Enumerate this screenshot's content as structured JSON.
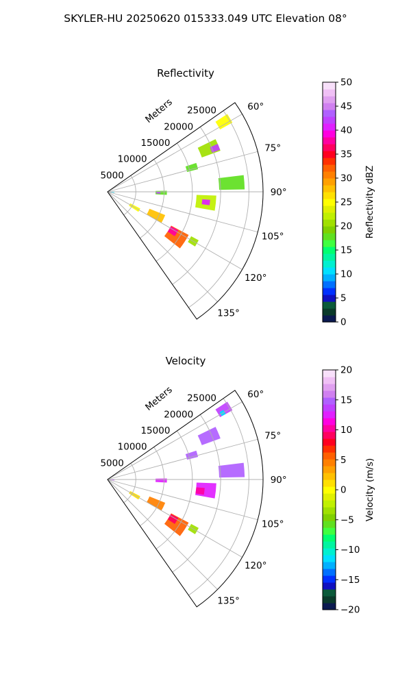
{
  "figure_title": "SKYLER-HU  20250620  015333.049 UTC Elevation 08°",
  "chart_data": [
    {
      "type": "heatmap",
      "projection": "polar-sector",
      "title": "Reflectivity",
      "range_label": "Meters",
      "range_ticks": [
        5000,
        10000,
        15000,
        20000,
        25000
      ],
      "range_tick_labels": [
        "5000",
        "10000",
        "15000",
        "20000",
        "25000"
      ],
      "azimuth_ticks": [
        60,
        75,
        90,
        105,
        120,
        135
      ],
      "azimuth_tick_labels": [
        "60°",
        "75°",
        "90°",
        "105°",
        "120°",
        "135°"
      ],
      "azimuth_range": [
        55,
        145
      ],
      "range_max": 27500,
      "grid": true,
      "colorbar": {
        "label": "Reflectivity dBZ",
        "min": 0,
        "max": 50,
        "ticks": [
          0,
          5,
          10,
          15,
          20,
          25,
          30,
          35,
          40,
          45,
          50
        ],
        "tick_labels": [
          "0",
          "5",
          "10",
          "15",
          "20",
          "25",
          "30",
          "35",
          "40",
          "45",
          "50"
        ],
        "colors": [
          "#0b1a50",
          "#0a3a2a",
          "#0b5a3a",
          "#1010c0",
          "#0030ff",
          "#0070ff",
          "#00b0ff",
          "#00e0ff",
          "#00f0d0",
          "#00f5a0",
          "#00ff70",
          "#40ff40",
          "#60e020",
          "#80d000",
          "#a0e000",
          "#c0f000",
          "#e0f000",
          "#ffff00",
          "#ffe000",
          "#ffc000",
          "#ffa000",
          "#ff8000",
          "#ff6000",
          "#ff3000",
          "#ff0020",
          "#ff0060",
          "#ff00a0",
          "#ff00e0",
          "#e020ff",
          "#c040ff",
          "#b060ff",
          "#d080f0",
          "#e0a0f0",
          "#f0c0f5",
          "#f8e0fa"
        ]
      },
      "echoes": [
        {
          "az": 59,
          "r": 24000,
          "dr": 2500,
          "daz": 4,
          "value": 25
        },
        {
          "az": 67,
          "r": 19500,
          "dr": 3500,
          "daz": 6,
          "value": 20
        },
        {
          "az": 68,
          "r": 20500,
          "dr": 1500,
          "daz": 3,
          "value": 42
        },
        {
          "az": 74,
          "r": 15500,
          "dr": 2000,
          "daz": 4,
          "value": 18
        },
        {
          "az": 86,
          "r": 22000,
          "dr": 4500,
          "daz": 6,
          "value": 18
        },
        {
          "az": 91,
          "r": 9500,
          "dr": 2000,
          "daz": 4,
          "value": 18
        },
        {
          "az": 91,
          "r": 9000,
          "dr": 700,
          "daz": 2,
          "value": 42
        },
        {
          "az": 96,
          "r": 17500,
          "dr": 3500,
          "daz": 8,
          "value": 22
        },
        {
          "az": 96,
          "r": 17500,
          "dr": 1400,
          "daz": 3,
          "value": 40
        },
        {
          "az": 120,
          "r": 5500,
          "dr": 2000,
          "daz": 6,
          "value": 25
        },
        {
          "az": 116,
          "r": 9500,
          "dr": 3000,
          "daz": 8,
          "value": 28
        },
        {
          "az": 123,
          "r": 14500,
          "dr": 3500,
          "daz": 10,
          "value": 32
        },
        {
          "az": 121,
          "r": 13500,
          "dr": 1500,
          "daz": 5,
          "value": 38
        },
        {
          "az": 120,
          "r": 17500,
          "dr": 1500,
          "daz": 4,
          "value": 20
        },
        {
          "az": 93,
          "r": 800,
          "dr": 800,
          "daz": 10,
          "value": 10
        }
      ]
    },
    {
      "type": "heatmap",
      "projection": "polar-sector",
      "title": "Velocity",
      "range_label": "Meters",
      "range_ticks": [
        5000,
        10000,
        15000,
        20000,
        25000
      ],
      "range_tick_labels": [
        "5000",
        "10000",
        "15000",
        "20000",
        "25000"
      ],
      "azimuth_ticks": [
        60,
        75,
        90,
        105,
        120,
        135
      ],
      "azimuth_tick_labels": [
        "60°",
        "75°",
        "90°",
        "105°",
        "120°",
        "135°"
      ],
      "azimuth_range": [
        55,
        145
      ],
      "range_max": 27500,
      "grid": true,
      "colorbar": {
        "label": "Velocity (m/s)",
        "min": -20,
        "max": 20,
        "ticks": [
          -20,
          -15,
          -10,
          -5,
          0,
          5,
          10,
          15,
          20
        ],
        "tick_labels": [
          "−20",
          "−15",
          "−10",
          "−5",
          "0",
          "5",
          "10",
          "15",
          "20"
        ],
        "colors": [
          "#0b1a50",
          "#0a3a2a",
          "#0b5a3a",
          "#1010c0",
          "#0030ff",
          "#0070ff",
          "#00b0ff",
          "#00e0ff",
          "#00f0d0",
          "#00f5a0",
          "#00ff70",
          "#40ff40",
          "#60e020",
          "#80d000",
          "#a0e000",
          "#c0f000",
          "#e0f000",
          "#ffff00",
          "#ffe000",
          "#ffc000",
          "#ffa000",
          "#ff8000",
          "#ff6000",
          "#ff3000",
          "#ff0020",
          "#ff0060",
          "#ff00a0",
          "#ff00e0",
          "#e020ff",
          "#c040ff",
          "#b060ff",
          "#d080f0",
          "#e0a0f0",
          "#f0c0f5",
          "#f8e0fa"
        ]
      },
      "echoes": [
        {
          "az": 59,
          "r": 24000,
          "dr": 2500,
          "daz": 4,
          "value": 14
        },
        {
          "az": 60,
          "r": 23500,
          "dr": 800,
          "daz": 2,
          "value": -12
        },
        {
          "az": 67,
          "r": 19500,
          "dr": 3500,
          "daz": 6,
          "value": 15
        },
        {
          "az": 74,
          "r": 15500,
          "dr": 2000,
          "daz": 4,
          "value": 15
        },
        {
          "az": 86,
          "r": 22000,
          "dr": 4500,
          "daz": 6,
          "value": 15
        },
        {
          "az": 91,
          "r": 9500,
          "dr": 2000,
          "daz": 4,
          "value": 12
        },
        {
          "az": 96,
          "r": 17500,
          "dr": 3500,
          "daz": 8,
          "value": 12
        },
        {
          "az": 97,
          "r": 16500,
          "dr": 1500,
          "daz": 4,
          "value": 10
        },
        {
          "az": 120,
          "r": 5500,
          "dr": 2000,
          "daz": 6,
          "value": 1
        },
        {
          "az": 116,
          "r": 9500,
          "dr": 3000,
          "daz": 8,
          "value": 4
        },
        {
          "az": 123,
          "r": 14500,
          "dr": 3500,
          "daz": 10,
          "value": 6
        },
        {
          "az": 121,
          "r": 13500,
          "dr": 1500,
          "daz": 5,
          "value": 9
        },
        {
          "az": 120,
          "r": 17500,
          "dr": 1500,
          "daz": 4,
          "value": -3
        },
        {
          "az": 93,
          "r": 800,
          "dr": 800,
          "daz": 10,
          "value": 14
        }
      ]
    }
  ]
}
